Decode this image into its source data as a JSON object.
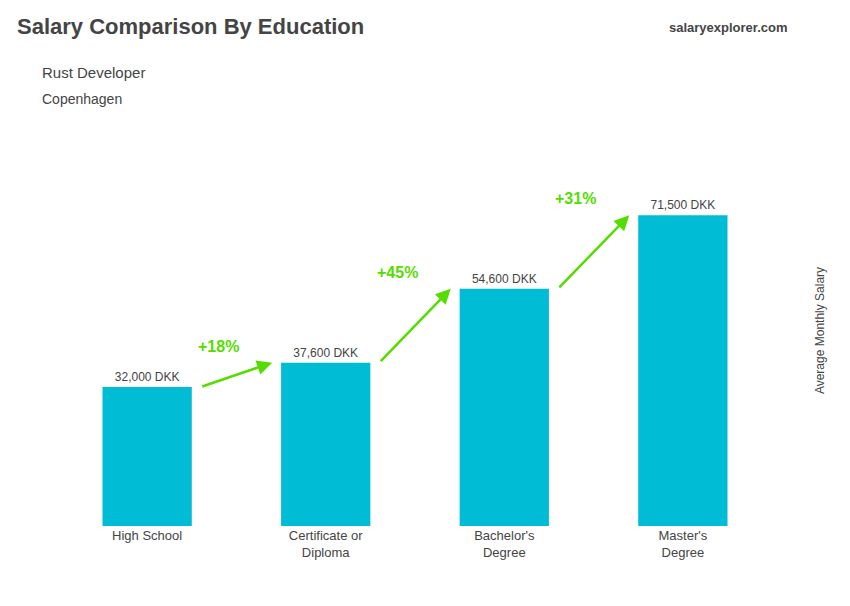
{
  "chart_data": {
    "type": "bar",
    "title": "Salary Comparison By Education",
    "subtitle": "Rust Developer",
    "ylabel": "Average Monthly Salary",
    "categories": [
      "High School",
      "Certificate or\nDiploma",
      "Bachelor's\nDegree",
      "Master's\nDegree"
    ],
    "values": [
      32000,
      37600,
      54600,
      71500
    ],
    "value_labels": [
      "32,000 DKK",
      "37,600 DKK",
      "54,600 DKK",
      "71,500 DKK"
    ],
    "data_labels": true,
    "color": "#00bcd4",
    "ylim": [
      0,
      90000
    ],
    "tick_labels": "x",
    "grid": false,
    "annotations": [
      {
        "text": "Copenhagen"
      },
      {
        "text": "salaryexplorer.com"
      },
      {
        "text": "+18%",
        "from": "High School",
        "to": "Certificate or\nDiploma",
        "color": "#55dd00"
      },
      {
        "text": "+45%",
        "from": "Certificate or\nDiploma",
        "to": "Bachelor's\nDegree",
        "color": "#55dd00"
      },
      {
        "text": "+31%",
        "from": "Bachelor's\nDegree",
        "to": "Master's\nDegree",
        "color": "#55dd00"
      }
    ]
  }
}
